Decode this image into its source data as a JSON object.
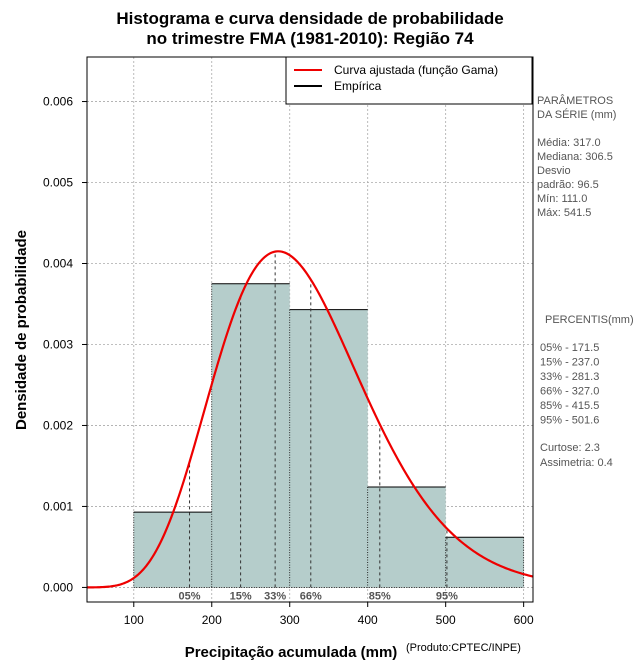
{
  "chart_data": {
    "type": "bar",
    "title": [
      "Histograma e curva densidade de probabilidade",
      "no trimestre FMA (1981-2010): Região 74"
    ],
    "xlabel": "Precipitação acumulada (mm)",
    "ylabel": "Densidade de probabilidade",
    "credit": "(Produto:CPTEC/INPE)",
    "xlim": [
      40,
      612
    ],
    "ylim": [
      -0.00018,
      0.00655
    ],
    "xticks": [
      100,
      200,
      300,
      400,
      500,
      600
    ],
    "yticks": [
      0.0,
      0.001,
      0.002,
      0.003,
      0.004,
      0.005,
      0.006
    ],
    "ytick_labels": [
      "0.000",
      "0.001",
      "0.002",
      "0.003",
      "0.004",
      "0.005",
      "0.006"
    ],
    "bins": [
      {
        "start": 100,
        "end": 200,
        "density": 0.00093
      },
      {
        "start": 200,
        "end": 300,
        "density": 0.00375
      },
      {
        "start": 300,
        "end": 400,
        "density": 0.00343
      },
      {
        "start": 400,
        "end": 500,
        "density": 0.00124
      },
      {
        "start": 500,
        "end": 600,
        "density": 0.00062
      }
    ],
    "bar_color": "#b5cdcb",
    "curve_color": "#ee0000",
    "gamma_shape": 9.97,
    "gamma_mean": 317.0,
    "percentile_markers": [
      {
        "label": "05%",
        "value": 171.5
      },
      {
        "label": "15%",
        "value": 237.0
      },
      {
        "label": "33%",
        "value": 281.3
      },
      {
        "label": "66%",
        "value": 327.0
      },
      {
        "label": "85%",
        "value": 415.5
      },
      {
        "label": "95%",
        "value": 501.6
      }
    ],
    "legend": [
      {
        "name": "Curva ajustada (função Gama)",
        "color": "#ee0000"
      },
      {
        "name": "Empírica",
        "color": "#000000"
      }
    ]
  },
  "side_panel": {
    "params_heading": [
      "PARÂMETROS",
      " DA SÉRIE (mm)"
    ],
    "params": [
      "Média:  317.0",
      "Mediana:  306.5",
      "Desvio",
      "padrão:  96.5",
      "Mín:  111.0",
      "Máx:  541.5"
    ],
    "percentis_heading": "PERCENTIS(mm)",
    "percentis": [
      "05% -  171.5",
      "15% -  237.0",
      "33% -  281.3",
      "66% -  327.0",
      "85% -  415.5",
      "95% -  501.6"
    ],
    "extras": [
      "Curtose:  2.3",
      "Assimetria:  0.4"
    ]
  }
}
